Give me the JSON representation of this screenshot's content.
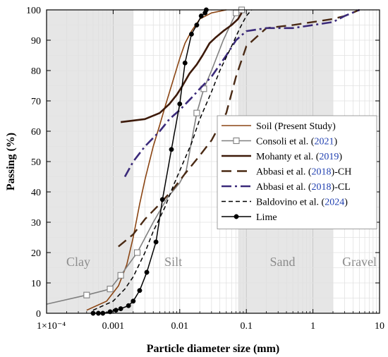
{
  "chart_data": {
    "type": "line",
    "xlabel": "Particle diameter size (mm)",
    "ylabel": "Passing (%)",
    "x_scale": "log",
    "xlim": [
      0.0001,
      10
    ],
    "ylim": [
      0,
      100
    ],
    "x_ticks": [
      0.0001,
      0.001,
      0.01,
      0.1,
      1,
      10
    ],
    "x_tick_labels": [
      "1×10⁻⁴",
      "0.001",
      "0.01",
      "0.1",
      "1",
      "10"
    ],
    "y_ticks": [
      0,
      10,
      20,
      30,
      40,
      50,
      60,
      70,
      80,
      90,
      100
    ],
    "grid": true,
    "legend_placement": "right",
    "regions": [
      {
        "label": "Clay",
        "x_range": [
          0.0001,
          0.002
        ],
        "shaded": true
      },
      {
        "label": "Silt",
        "x_range": [
          0.002,
          0.075
        ],
        "shaded": false
      },
      {
        "label": "Sand",
        "x_range": [
          0.075,
          2
        ],
        "shaded": true
      },
      {
        "label": "Gravel",
        "x_range": [
          2,
          10
        ],
        "shaded": false
      }
    ],
    "series": [
      {
        "name": "Soil (Present Study)",
        "legend_main": "Soil (Present Study)",
        "legend_year": "",
        "legend_suffix": "",
        "color": "#8B4513",
        "dash": "",
        "width": 1.6,
        "marker": "none",
        "x": [
          0.0004,
          0.0008,
          0.0012,
          0.0016,
          0.002,
          0.0025,
          0.003,
          0.004,
          0.005,
          0.006,
          0.008,
          0.01,
          0.012,
          0.015,
          0.02,
          0.03,
          0.05
        ],
        "y": [
          1,
          4,
          9,
          16,
          25,
          36,
          44,
          55,
          62,
          68,
          77,
          84,
          89,
          93,
          97,
          99,
          100
        ]
      },
      {
        "name": "Consoli et al. (2021)",
        "legend_main": "Consoli et al. (",
        "legend_year": "2021",
        "legend_suffix": ")",
        "color": "#808080",
        "dash": "",
        "width": 1.6,
        "marker": "square",
        "x": [
          0.0001,
          0.0004,
          0.0009,
          0.0013,
          0.0023,
          0.004,
          0.0065,
          0.01,
          0.0125,
          0.018,
          0.023,
          0.03,
          0.045,
          0.07,
          0.085
        ],
        "y": [
          3,
          6,
          8,
          12.5,
          20,
          30,
          38,
          43,
          47,
          66,
          74,
          80,
          90,
          99,
          100
        ],
        "marked": [
          false,
          true,
          true,
          true,
          true,
          false,
          false,
          false,
          false,
          true,
          true,
          false,
          false,
          true,
          true
        ]
      },
      {
        "name": "Mohanty et al. (2019)",
        "legend_main": "Mohanty et al. (",
        "legend_year": "2019",
        "legend_suffix": ")",
        "color": "#3d1a0a",
        "dash": "",
        "width": 2.6,
        "marker": "none",
        "x": [
          0.0013,
          0.003,
          0.005,
          0.007,
          0.009,
          0.011,
          0.014,
          0.018,
          0.022,
          0.028,
          0.035,
          0.045,
          0.06,
          0.075,
          0.085
        ],
        "y": [
          63,
          64,
          66,
          69,
          72,
          75,
          79,
          82,
          85,
          89,
          91,
          93,
          95,
          97,
          99
        ]
      },
      {
        "name": "Abbasi et al. (2018)-CH",
        "legend_main": "Abbasi et al. (",
        "legend_year": "2018",
        "legend_suffix": ")-CH",
        "color": "#4a2a14",
        "dash": "14,8",
        "width": 2.4,
        "marker": "none",
        "x": [
          0.0012,
          0.002,
          0.003,
          0.005,
          0.008,
          0.012,
          0.02,
          0.03,
          0.05,
          0.07,
          0.1,
          0.2,
          0.5,
          1,
          2,
          3,
          5
        ],
        "y": [
          22,
          26,
          31,
          36,
          41,
          46,
          52,
          57,
          66,
          78,
          88,
          94,
          95,
          96,
          97,
          98,
          100
        ]
      },
      {
        "name": "Abbasi et al. (2018)-CL",
        "legend_main": "Abbasi et al. (",
        "legend_year": "2018",
        "legend_suffix": ")-CL",
        "color": "#3b2a7a",
        "dash": "14,5,3,5",
        "width": 2.6,
        "marker": "none",
        "x": [
          0.0015,
          0.002,
          0.003,
          0.005,
          0.007,
          0.01,
          0.015,
          0.02,
          0.03,
          0.05,
          0.07,
          0.1,
          0.2,
          0.5,
          1,
          2,
          3,
          5
        ],
        "y": [
          45,
          50,
          55,
          60,
          64,
          67,
          71,
          74,
          78,
          85,
          90,
          93,
          94,
          94,
          95,
          96,
          98,
          100
        ]
      },
      {
        "name": "Baldovino et al. (2024)",
        "legend_main": "Baldovino et al. (",
        "legend_year": "2024",
        "legend_suffix": ")",
        "color": "#000000",
        "dash": "6,4",
        "width": 1.5,
        "marker": "none",
        "x": [
          0.0005,
          0.001,
          0.0015,
          0.002,
          0.003,
          0.004,
          0.006,
          0.008,
          0.01,
          0.015,
          0.02,
          0.03,
          0.04,
          0.06,
          0.08,
          0.1,
          0.12
        ],
        "y": [
          1,
          4,
          8,
          12,
          20,
          27,
          35,
          42,
          47,
          56,
          64,
          73,
          80,
          88,
          94,
          98,
          100
        ]
      },
      {
        "name": "Lime",
        "legend_main": "Lime",
        "legend_year": "",
        "legend_suffix": "",
        "color": "#000000",
        "dash": "",
        "width": 1.5,
        "marker": "circle",
        "x": [
          0.0005,
          0.0006,
          0.0007,
          0.0009,
          0.0011,
          0.0013,
          0.0017,
          0.002,
          0.0025,
          0.0032,
          0.0044,
          0.0055,
          0.0075,
          0.01,
          0.012,
          0.015,
          0.018,
          0.021,
          0.024,
          0.025
        ],
        "y": [
          0,
          0,
          0,
          0.5,
          1,
          1.5,
          2.5,
          4,
          7.5,
          13.5,
          23.5,
          37.5,
          54,
          69,
          82.5,
          92,
          95,
          98,
          99,
          100
        ]
      }
    ]
  }
}
